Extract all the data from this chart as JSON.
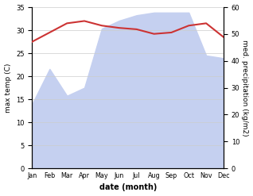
{
  "months": [
    "Jan",
    "Feb",
    "Mar",
    "Apr",
    "May",
    "Jun",
    "Jul",
    "Aug",
    "Sep",
    "Oct",
    "Nov",
    "Dec"
  ],
  "max_temp": [
    27.5,
    29.5,
    31.5,
    32.0,
    31.0,
    30.5,
    30.2,
    29.2,
    29.5,
    31.0,
    31.5,
    28.5
  ],
  "precipitation": [
    24,
    37,
    27,
    30,
    52,
    55,
    57,
    58,
    58,
    58,
    42,
    41
  ],
  "temp_ylim": [
    0,
    35
  ],
  "precip_ylim": [
    0,
    60
  ],
  "temp_color": "#cc3333",
  "precip_fill_color": "#c5d0f0",
  "precip_line_color": "#c5d0f0",
  "xlabel": "date (month)",
  "ylabel_left": "max temp (C)",
  "ylabel_right": "med. precipitation (kg/m2)",
  "temp_yticks": [
    0,
    5,
    10,
    15,
    20,
    25,
    30,
    35
  ],
  "precip_yticks": [
    0,
    10,
    20,
    30,
    40,
    50,
    60
  ]
}
